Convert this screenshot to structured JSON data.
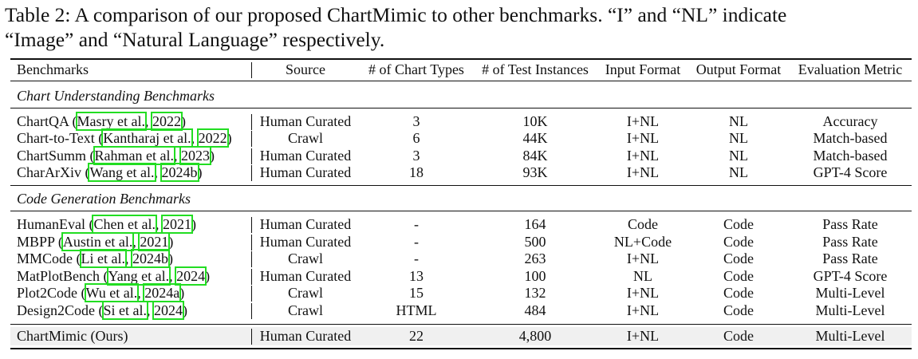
{
  "caption": {
    "line1_left": "Table 2: A comparison of our proposed ChartMimic to other benchmarks. “I” and “NL” indicate",
    "line2": "“Image” and “Natural Language” respectively."
  },
  "headers": [
    "Benchmarks",
    "Source",
    "# of Chart Types",
    "# of Test Instances",
    "Input Format",
    "Output Format",
    "Evaluation Metric"
  ],
  "sections": {
    "understanding": "Chart Understanding Benchmarks",
    "generation": "Code Generation Benchmarks"
  },
  "rows_understanding": [
    {
      "name": "ChartQA",
      "author": "Masry et al.",
      "year": "2022",
      "source": "Human Curated",
      "types": "3",
      "instances": "10K",
      "input": "I+NL",
      "output": "NL",
      "metric": "Accuracy"
    },
    {
      "name": "Chart-to-Text",
      "author": "Kantharaj et al.",
      "year": "2022",
      "source": "Crawl",
      "types": "6",
      "instances": "44K",
      "input": "I+NL",
      "output": "NL",
      "metric": "Match-based"
    },
    {
      "name": "ChartSumm",
      "author": "Rahman et al.",
      "year": "2023",
      "source": "Human Curated",
      "types": "3",
      "instances": "84K",
      "input": "I+NL",
      "output": "NL",
      "metric": "Match-based"
    },
    {
      "name": "CharArXiv",
      "author": "Wang et al.",
      "year": "2024b",
      "source": "Human Curated",
      "types": "18",
      "instances": "93K",
      "input": "I+NL",
      "output": "NL",
      "metric": "GPT-4 Score"
    }
  ],
  "rows_generation": [
    {
      "name": "HumanEval",
      "author": "Chen et al.",
      "year": "2021",
      "source": "Human Curated",
      "types": "-",
      "instances": "164",
      "input": "Code",
      "output": "Code",
      "metric": "Pass Rate"
    },
    {
      "name": "MBPP",
      "author": "Austin et al.",
      "year": "2021",
      "source": "Human Curated",
      "types": "-",
      "instances": "500",
      "input": "NL+Code",
      "output": "Code",
      "metric": "Pass Rate"
    },
    {
      "name": "MMCode",
      "author": "Li et al.",
      "year": "2024b",
      "source": "Crawl",
      "types": "-",
      "instances": "263",
      "input": "I+NL",
      "output": "Code",
      "metric": "Pass Rate"
    },
    {
      "name": "MatPlotBench",
      "author": "Yang et al.",
      "year": "2024",
      "source": "Human Curated",
      "types": "13",
      "instances": "100",
      "input": "NL",
      "output": "Code",
      "metric": "GPT-4 Score"
    },
    {
      "name": "Plot2Code",
      "author": "Wu et al.",
      "year": "2024a",
      "source": "Crawl",
      "types": "15",
      "instances": "132",
      "input": "I+NL",
      "output": "Code",
      "metric": "Multi-Level"
    },
    {
      "name": "Design2Code",
      "author": "Si et al.",
      "year": "2024",
      "source": "Crawl",
      "types": "HTML",
      "instances": "484",
      "input": "I+NL",
      "output": "Code",
      "metric": "Multi-Level"
    }
  ],
  "row_ours": {
    "name": "ChartMimic (Ours)",
    "source": "Human Curated",
    "types": "22",
    "instances": "4,800",
    "input": "I+NL",
    "output": "Code",
    "metric": "Multi-Level"
  }
}
